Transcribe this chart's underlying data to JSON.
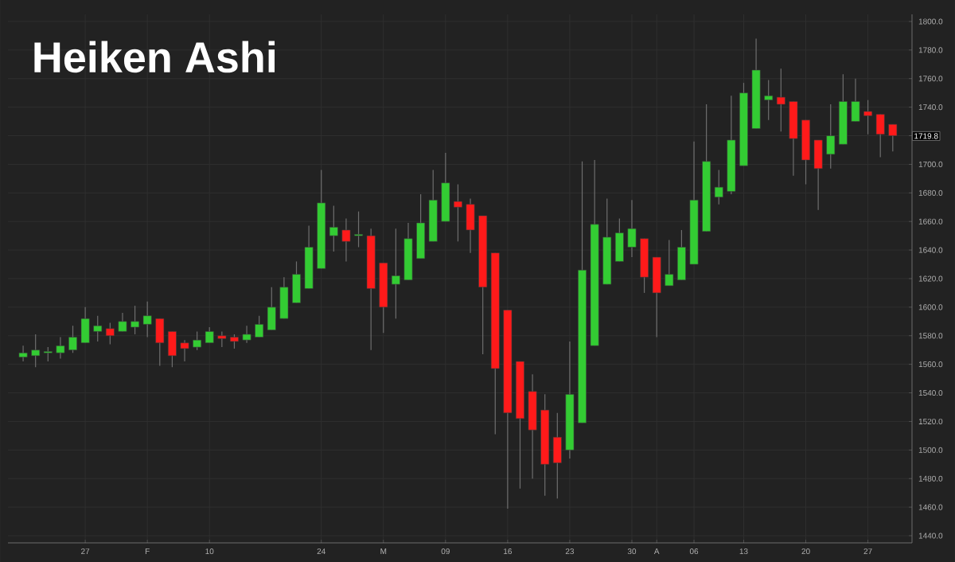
{
  "chart_data": {
    "type": "candlestick",
    "title": "Heiken Ashi",
    "categories": [
      null,
      null,
      null,
      null,
      null,
      "27",
      null,
      null,
      null,
      null,
      "F",
      null,
      null,
      null,
      null,
      "10",
      null,
      null,
      null,
      null,
      null,
      null,
      null,
      null,
      "24",
      null,
      null,
      null,
      null,
      "M",
      null,
      null,
      null,
      null,
      "09",
      null,
      null,
      null,
      null,
      "16",
      null,
      null,
      null,
      null,
      "23",
      null,
      null,
      null,
      null,
      "30",
      null,
      "A",
      null,
      null,
      "06",
      null,
      null,
      null,
      "13",
      null,
      null,
      null,
      null,
      "20",
      null,
      null,
      null,
      null,
      "27",
      null,
      null
    ],
    "ohlc": [
      [
        1565,
        1573,
        1562,
        1568
      ],
      [
        1566,
        1581,
        1558,
        1570
      ],
      [
        1568,
        1572,
        1562,
        1569
      ],
      [
        1568,
        1579,
        1564,
        1573
      ],
      [
        1570,
        1587,
        1568,
        1579
      ],
      [
        1575,
        1600,
        1575,
        1592
      ],
      [
        1583,
        1594,
        1576,
        1587
      ],
      [
        1585,
        1589,
        1574,
        1580
      ],
      [
        1583,
        1596,
        1583,
        1590
      ],
      [
        1586,
        1601,
        1581,
        1590
      ],
      [
        1588,
        1604,
        1579,
        1594
      ],
      [
        1592,
        1592,
        1559,
        1575
      ],
      [
        1583,
        1583,
        1558,
        1566
      ],
      [
        1575,
        1577,
        1562,
        1571
      ],
      [
        1572,
        1583,
        1570,
        1577
      ],
      [
        1575,
        1586,
        1575,
        1583
      ],
      [
        1580,
        1583,
        1572,
        1578
      ],
      [
        1579,
        1581,
        1571,
        1576
      ],
      [
        1577,
        1587,
        1575,
        1581
      ],
      [
        1579,
        1594,
        1579,
        1588
      ],
      [
        1584,
        1614,
        1584,
        1600
      ],
      [
        1592,
        1621,
        1592,
        1614
      ],
      [
        1603,
        1632,
        1603,
        1623
      ],
      [
        1613,
        1657,
        1613,
        1642
      ],
      [
        1627,
        1696,
        1627,
        1673
      ],
      [
        1650,
        1671,
        1639,
        1656
      ],
      [
        1654,
        1662,
        1632,
        1646
      ],
      [
        1650,
        1667,
        1642,
        1651
      ],
      [
        1650,
        1655,
        1570,
        1613
      ],
      [
        1631,
        1631,
        1582,
        1600
      ],
      [
        1616,
        1655,
        1592,
        1622
      ],
      [
        1619,
        1659,
        1619,
        1648
      ],
      [
        1634,
        1679,
        1634,
        1659
      ],
      [
        1646,
        1696,
        1646,
        1675
      ],
      [
        1660,
        1708,
        1660,
        1687
      ],
      [
        1674,
        1686,
        1646,
        1670
      ],
      [
        1672,
        1676,
        1638,
        1654
      ],
      [
        1664,
        1664,
        1567,
        1614
      ],
      [
        1638,
        1638,
        1511,
        1557
      ],
      [
        1598,
        1598,
        1459,
        1526
      ],
      [
        1562,
        1562,
        1473,
        1522
      ],
      [
        1541,
        1553,
        1480,
        1514
      ],
      [
        1528,
        1539,
        1468,
        1490
      ],
      [
        1509,
        1526,
        1466,
        1491
      ],
      [
        1500,
        1576,
        1494,
        1539
      ],
      [
        1519,
        1702,
        1519,
        1626
      ],
      [
        1573,
        1703,
        1573,
        1658
      ],
      [
        1616,
        1676,
        1616,
        1649
      ],
      [
        1632,
        1662,
        1632,
        1652
      ],
      [
        1642,
        1675,
        1635,
        1655
      ],
      [
        1648,
        1648,
        1610,
        1621
      ],
      [
        1635,
        1635,
        1579,
        1610
      ],
      [
        1615,
        1647,
        1615,
        1623
      ],
      [
        1619,
        1654,
        1619,
        1642
      ],
      [
        1630,
        1716,
        1630,
        1675
      ],
      [
        1653,
        1742,
        1653,
        1702
      ],
      [
        1677,
        1696,
        1672,
        1684
      ],
      [
        1681,
        1748,
        1679,
        1717
      ],
      [
        1699,
        1757,
        1699,
        1750
      ],
      [
        1725,
        1788,
        1725,
        1766
      ],
      [
        1745,
        1759,
        1731,
        1748
      ],
      [
        1747,
        1767,
        1723,
        1742
      ],
      [
        1744,
        1744,
        1692,
        1718
      ],
      [
        1731,
        1731,
        1686,
        1703
      ],
      [
        1717,
        1717,
        1668,
        1697
      ],
      [
        1707,
        1742,
        1697,
        1720
      ],
      [
        1714,
        1763,
        1714,
        1744
      ],
      [
        1730,
        1760,
        1730,
        1744
      ],
      [
        1737,
        1745,
        1721,
        1734
      ],
      [
        1735,
        1735,
        1705,
        1721
      ],
      [
        1728,
        1728,
        1709,
        1720
      ]
    ],
    "colors": [
      "#33cc33",
      "#33cc33",
      "#33cc33",
      "#33cc33",
      "#33cc33",
      "#33cc33",
      "#33cc33",
      "#ff1a1a",
      "#33cc33",
      "#33cc33",
      "#33cc33",
      "#ff1a1a",
      "#ff1a1a",
      "#ff1a1a",
      "#33cc33",
      "#33cc33",
      "#ff1a1a",
      "#ff1a1a",
      "#33cc33",
      "#33cc33",
      "#33cc33",
      "#33cc33",
      "#33cc33",
      "#33cc33",
      "#33cc33",
      "#33cc33",
      "#ff1a1a",
      "#33cc33",
      "#ff1a1a",
      "#ff1a1a",
      "#33cc33",
      "#33cc33",
      "#33cc33",
      "#33cc33",
      "#33cc33",
      "#ff1a1a",
      "#ff1a1a",
      "#ff1a1a",
      "#ff1a1a",
      "#ff1a1a",
      "#ff1a1a",
      "#ff1a1a",
      "#ff1a1a",
      "#ff1a1a",
      "#33cc33",
      "#33cc33",
      "#33cc33",
      "#33cc33",
      "#33cc33",
      "#33cc33",
      "#ff1a1a",
      "#ff1a1a",
      "#33cc33",
      "#33cc33",
      "#33cc33",
      "#33cc33",
      "#33cc33",
      "#33cc33",
      "#33cc33",
      "#33cc33",
      "#33cc33",
      "#ff1a1a",
      "#ff1a1a",
      "#ff1a1a",
      "#ff1a1a",
      "#33cc33",
      "#33cc33",
      "#33cc33",
      "#ff1a1a",
      "#ff1a1a",
      "#ff1a1a"
    ],
    "ylim": [
      1435,
      1805
    ],
    "yticks": [
      {
        "value": 1440,
        "label": "1440.0"
      },
      {
        "value": 1460,
        "label": "1460.0"
      },
      {
        "value": 1480,
        "label": "1480.0"
      },
      {
        "value": 1500,
        "label": "1500.0"
      },
      {
        "value": 1520,
        "label": "1520.0"
      },
      {
        "value": 1540,
        "label": "1540.0"
      },
      {
        "value": 1560,
        "label": "1560.0"
      },
      {
        "value": 1580,
        "label": "1580.0"
      },
      {
        "value": 1600,
        "label": "1600.0"
      },
      {
        "value": 1620,
        "label": "1620.0"
      },
      {
        "value": 1640,
        "label": "1640.0"
      },
      {
        "value": 1660,
        "label": "1660.0"
      },
      {
        "value": 1680,
        "label": "1680.0"
      },
      {
        "value": 1700,
        "label": "1700.0"
      },
      {
        "value": 1720,
        "label": null
      },
      {
        "value": 1740,
        "label": "1740.0"
      },
      {
        "value": 1760,
        "label": "1760.0"
      },
      {
        "value": 1780,
        "label": "1780.0"
      },
      {
        "value": 1800,
        "label": "1800.0"
      }
    ],
    "grid": true,
    "annotations": [
      {
        "text": "1719.8",
        "y": 1719.8
      }
    ]
  }
}
